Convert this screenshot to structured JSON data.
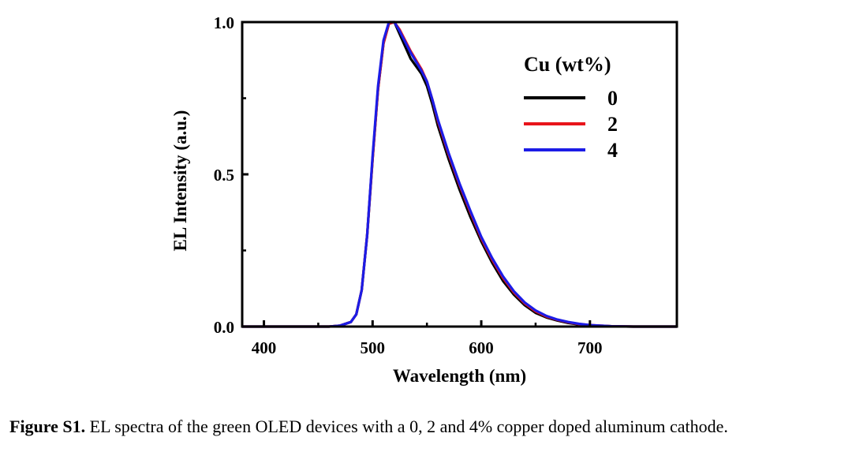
{
  "chart_data": {
    "type": "line",
    "xlabel": "Wavelength (nm)",
    "ylabel": "EL Intensity (a.u.)",
    "xlim": [
      380,
      780
    ],
    "ylim": [
      0,
      1.0
    ],
    "xticks": [
      400,
      500,
      600,
      700
    ],
    "yticks": [
      0.0,
      0.5,
      1.0
    ],
    "ytick_labels": [
      "0.0",
      "0.5",
      "1.0"
    ],
    "legend_title": "Cu (wt%)",
    "legend_position": "top-right",
    "series": [
      {
        "name": "0",
        "color": "#000000",
        "x": [
          380,
          460,
          470,
          480,
          485,
          490,
          495,
          500,
          505,
          510,
          515,
          520,
          525,
          530,
          535,
          540,
          545,
          550,
          555,
          560,
          570,
          580,
          590,
          600,
          610,
          620,
          630,
          640,
          650,
          660,
          670,
          680,
          690,
          700,
          720,
          740,
          780
        ],
        "y": [
          0.0,
          0.0,
          0.003,
          0.015,
          0.04,
          0.12,
          0.3,
          0.55,
          0.78,
          0.93,
          0.995,
          1.0,
          0.96,
          0.92,
          0.88,
          0.855,
          0.83,
          0.79,
          0.73,
          0.66,
          0.55,
          0.45,
          0.36,
          0.28,
          0.21,
          0.15,
          0.105,
          0.07,
          0.045,
          0.03,
          0.02,
          0.012,
          0.007,
          0.004,
          0.001,
          0.0,
          0.0
        ]
      },
      {
        "name": "2",
        "color": "#e8141b",
        "x": [
          380,
          460,
          470,
          480,
          485,
          490,
          495,
          500,
          505,
          510,
          515,
          520,
          525,
          530,
          535,
          540,
          545,
          550,
          555,
          560,
          570,
          580,
          590,
          600,
          610,
          620,
          630,
          640,
          650,
          660,
          670,
          680,
          690,
          700,
          720,
          740,
          780
        ],
        "y": [
          0.0,
          0.0,
          0.003,
          0.015,
          0.04,
          0.12,
          0.3,
          0.55,
          0.78,
          0.93,
          0.995,
          1.0,
          0.975,
          0.94,
          0.905,
          0.875,
          0.845,
          0.805,
          0.745,
          0.675,
          0.565,
          0.465,
          0.375,
          0.29,
          0.22,
          0.16,
          0.112,
          0.076,
          0.05,
          0.033,
          0.022,
          0.014,
          0.008,
          0.005,
          0.001,
          0.0,
          0.0
        ]
      },
      {
        "name": "4",
        "color": "#1c1ce6",
        "x": [
          380,
          460,
          470,
          480,
          485,
          490,
          495,
          500,
          505,
          510,
          515,
          520,
          525,
          530,
          535,
          540,
          545,
          550,
          555,
          560,
          570,
          580,
          590,
          600,
          610,
          620,
          630,
          640,
          650,
          660,
          670,
          680,
          690,
          700,
          720,
          740,
          780
        ],
        "y": [
          0.0,
          0.0,
          0.003,
          0.015,
          0.04,
          0.12,
          0.3,
          0.56,
          0.79,
          0.94,
          1.0,
          1.0,
          0.97,
          0.935,
          0.9,
          0.87,
          0.84,
          0.805,
          0.745,
          0.68,
          0.57,
          0.47,
          0.38,
          0.295,
          0.225,
          0.165,
          0.116,
          0.079,
          0.053,
          0.035,
          0.023,
          0.015,
          0.009,
          0.005,
          0.001,
          0.0,
          0.0
        ]
      }
    ]
  },
  "caption": {
    "label": "Figure S1.",
    "text": " EL spectra of the green OLED devices with a 0, 2 and 4% copper doped aluminum cathode."
  }
}
